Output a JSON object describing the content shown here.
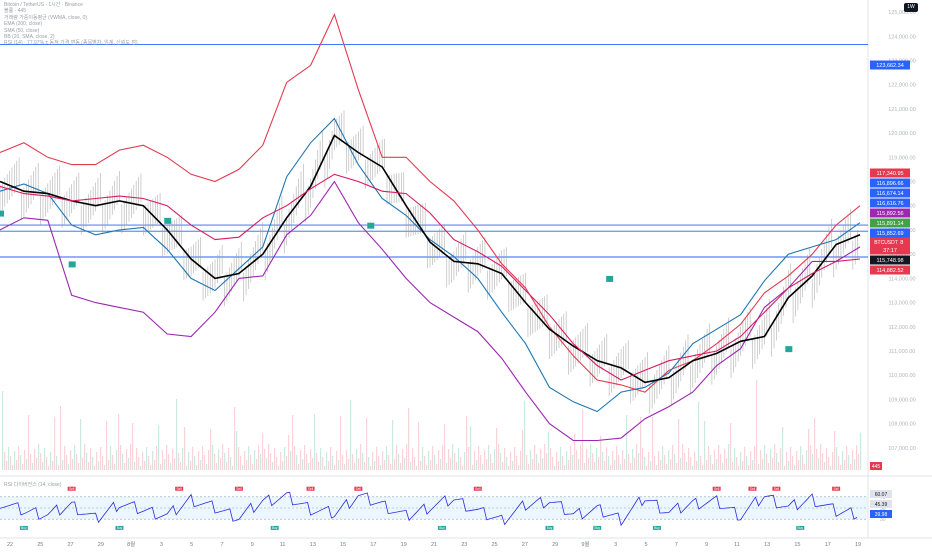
{
  "header": {
    "legend_lines": [
      "Bitcoin / TetherUS · 1시간 · Binance",
      "볼륨 · 445",
      "거래량 가중이동평균 (VWMA, close, 0)",
      "EMA (200, close)",
      "SMA (50, close)",
      "BB (20, SMA, close, 2)",
      "RSI (14) · 77.97% ± 동적 가격 변동 (종목별차, 임계, 신뢰도 점)"
    ],
    "timeframe_button": "1W"
  },
  "chart_data": [
    {
      "type": "line",
      "ylim": [
        106000,
        125500
      ],
      "y_ticks": [
        107000,
        108000,
        109000,
        110000,
        111000,
        112000,
        113000,
        114000,
        115000,
        116000,
        117000,
        118000,
        119000,
        120000,
        121000,
        122000,
        123000,
        124000,
        125000
      ],
      "x_tick_labels": [
        "22",
        "25",
        "27",
        "29",
        "8월",
        "3",
        "5",
        "7",
        "9",
        "11",
        "13",
        "15",
        "17",
        "19",
        "21",
        "23",
        "25",
        "27",
        "29",
        "9월",
        "3",
        "5",
        "7",
        "9",
        "11",
        "13",
        "15",
        "17",
        "19"
      ],
      "x": [
        0,
        4,
        8,
        12,
        16,
        20,
        24,
        28,
        32,
        36,
        40,
        44,
        48,
        52,
        56,
        60,
        64,
        68,
        72,
        76,
        80,
        84,
        88,
        92,
        96,
        100,
        104,
        108,
        112,
        116,
        120,
        124,
        128,
        132,
        136,
        140,
        144
      ],
      "series": [
        {
          "name": "BB upper",
          "color": "#e53950",
          "values": [
            119200,
            119600,
            119000,
            118700,
            118700,
            119300,
            119500,
            119000,
            118300,
            118000,
            118500,
            119500,
            122100,
            122800,
            124900,
            121800,
            119000,
            119000,
            118000,
            117200,
            116000,
            114600,
            113600,
            112000,
            110800,
            109800,
            109600,
            109300,
            110200,
            110600,
            111300,
            112100,
            113400,
            114100,
            115000,
            116200,
            117000
          ]
        },
        {
          "name": "BB basis",
          "color": "#1f77b4",
          "values": [
            117600,
            117900,
            117500,
            116200,
            115800,
            116000,
            116100,
            115200,
            114000,
            113500,
            114400,
            115300,
            118200,
            119600,
            120600,
            118700,
            117300,
            116600,
            115600,
            114900,
            114000,
            112600,
            111300,
            109500,
            108900,
            108500,
            109300,
            109500,
            110100,
            111300,
            111900,
            112500,
            113900,
            115000,
            115300,
            115600,
            116300
          ]
        },
        {
          "name": "BB lower",
          "color": "#9c27b0",
          "values": [
            116000,
            116500,
            116400,
            113300,
            113000,
            112800,
            112600,
            111700,
            111600,
            112600,
            114000,
            114100,
            115800,
            116600,
            118000,
            116300,
            115200,
            114000,
            113000,
            112400,
            111800,
            110700,
            109300,
            108000,
            107300,
            107300,
            107400,
            108200,
            108700,
            109300,
            110400,
            111100,
            112800,
            113600,
            114700,
            114700,
            115300
          ]
        },
        {
          "name": "SMA",
          "color": "#000000",
          "values": [
            118000,
            117600,
            117500,
            117200,
            117000,
            117200,
            117000,
            116000,
            114800,
            114000,
            114200,
            115000,
            116500,
            117800,
            119900,
            119200,
            118600,
            117000,
            115500,
            114700,
            114600,
            114200,
            113000,
            111900,
            111200,
            110600,
            110300,
            109700,
            109900,
            110600,
            110900,
            111400,
            111600,
            113200,
            114100,
            115400,
            115800
          ]
        },
        {
          "name": "EMA",
          "color": "#d81b60",
          "values": [
            117800,
            117500,
            117400,
            117200,
            117300,
            117400,
            117300,
            117000,
            116200,
            115600,
            115700,
            116500,
            117000,
            117700,
            118300,
            118000,
            117600,
            117500,
            116700,
            115600,
            115100,
            114500,
            113500,
            112500,
            111300,
            110400,
            109800,
            110200,
            110600,
            110800,
            111000,
            111600,
            112600,
            113600,
            114200,
            114700,
            114800
          ]
        }
      ]
    },
    {
      "type": "line",
      "ylim": [
        0,
        100
      ],
      "y_ticks": [
        70,
        50,
        30
      ],
      "x": [
        0,
        4,
        8,
        12,
        16,
        20,
        24,
        28,
        32,
        36,
        40,
        44,
        48,
        52,
        56,
        60,
        64,
        68,
        72,
        76,
        80,
        84,
        88,
        92,
        96,
        100,
        104,
        108,
        112,
        116,
        120,
        124,
        128,
        132,
        136,
        140,
        144
      ],
      "series": [
        {
          "name": "RSI",
          "color": "#2b2be0",
          "values": [
            60,
            45,
            38,
            55,
            30,
            58,
            46,
            36,
            65,
            50,
            33,
            62,
            70,
            48,
            40,
            72,
            56,
            35,
            52,
            66,
            44,
            28,
            55,
            63,
            38,
            47,
            30,
            68,
            42,
            58,
            61,
            36,
            72,
            50,
            66,
            44,
            40
          ]
        }
      ]
    }
  ],
  "price_labels": [
    {
      "text": "123,662.34",
      "color": "#2962ff"
    },
    {
      "text": "117,340.95",
      "color": "#e53950"
    },
    {
      "text": "116,896.66",
      "color": "#2962ff"
    },
    {
      "text": "116,674.14",
      "color": "#2962ff"
    },
    {
      "text": "116,616.76",
      "color": "#2962ff"
    },
    {
      "text": "115,892.56",
      "color": "#9c27b0"
    },
    {
      "text": "115,891.14",
      "color": "#43a047"
    },
    {
      "text": "115,852.69",
      "color": "#2962ff"
    },
    {
      "text": "115,811.78",
      "color": "#e53950"
    },
    {
      "text": "37:17",
      "color": "#e53950"
    },
    {
      "text": "115,748.98",
      "color": "#131722"
    },
    {
      "text": "114,882.52",
      "color": "#e53950"
    }
  ],
  "symbol_tag": "BTCUSDT",
  "volume_label": "445",
  "oscillator": {
    "title": "RSI 다이버전스 (14, close)",
    "labels": [
      {
        "text": "60.07",
        "color": "#131722"
      },
      {
        "text": "45.39",
        "color": "#131722"
      },
      {
        "text": "39.98",
        "color": "#2962ff"
      }
    ]
  },
  "markers_text": {
    "buy": "Buy",
    "sell": "Sell"
  }
}
